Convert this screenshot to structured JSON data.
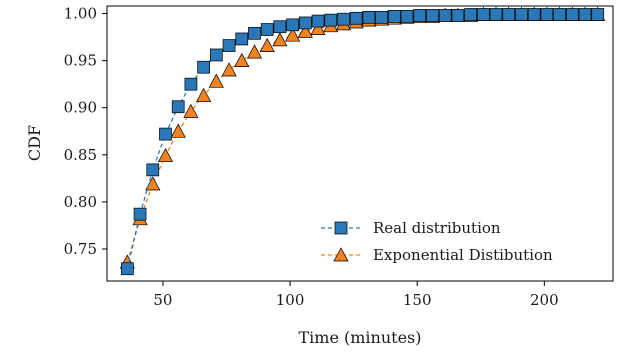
{
  "chart_data": {
    "type": "line",
    "xlabel": "Time (minutes)",
    "ylabel": "CDF",
    "xlim": [
      28,
      227
    ],
    "ylim": [
      0.716,
      1.008
    ],
    "xticks": [
      50,
      100,
      150,
      200
    ],
    "yticks": [
      0.75,
      0.8,
      0.85,
      0.9,
      0.95,
      1.0
    ],
    "xtick_labels": [
      "50",
      "100",
      "150",
      "200"
    ],
    "ytick_labels": [
      "0.75",
      "0.80",
      "0.85",
      "0.90",
      "0.95",
      "1.00"
    ],
    "grid": false,
    "legend_position": "lower-right",
    "x": [
      36,
      41,
      46,
      51,
      56,
      61,
      66,
      71,
      76,
      81,
      86,
      91,
      96,
      101,
      106,
      111,
      116,
      121,
      126,
      131,
      136,
      141,
      146,
      151,
      156,
      161,
      166,
      171,
      176,
      181,
      186,
      191,
      196,
      201,
      206,
      211,
      216,
      221
    ],
    "series": [
      {
        "name": "Real distribution",
        "marker": "square",
        "color": "#2a78b7",
        "values": [
          0.729,
          0.787,
          0.834,
          0.872,
          0.901,
          0.925,
          0.943,
          0.956,
          0.966,
          0.973,
          0.979,
          0.983,
          0.986,
          0.988,
          0.99,
          0.992,
          0.993,
          0.994,
          0.995,
          0.996,
          0.996,
          0.997,
          0.997,
          0.998,
          0.998,
          0.998,
          0.998,
          0.999,
          0.999,
          0.999,
          0.999,
          0.999,
          0.999,
          0.999,
          0.999,
          0.999,
          0.999,
          0.999
        ]
      },
      {
        "name": "Exponential Distibution",
        "marker": "triangle",
        "color": "#f28322",
        "values": [
          0.736,
          0.782,
          0.819,
          0.849,
          0.875,
          0.896,
          0.913,
          0.928,
          0.94,
          0.95,
          0.959,
          0.966,
          0.972,
          0.977,
          0.981,
          0.984,
          0.987,
          0.989,
          0.991,
          0.993,
          0.994,
          0.995,
          0.996,
          0.997,
          0.997,
          0.998,
          0.998,
          0.998,
          0.999,
          0.999,
          0.999,
          0.999,
          0.999,
          0.999,
          0.999,
          0.999,
          0.999,
          0.999
        ]
      }
    ]
  }
}
